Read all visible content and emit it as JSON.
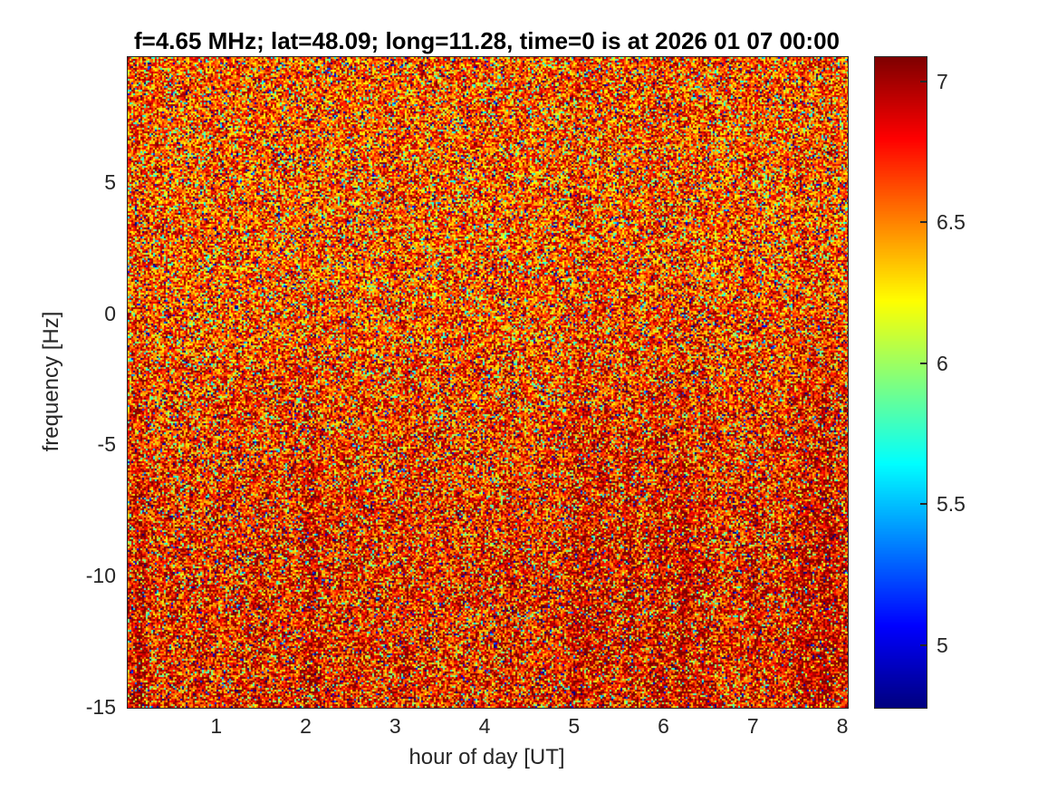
{
  "chart_data": {
    "type": "heatmap",
    "title": "f=4.65 MHz;  lat=48.09; long=11.28, time=0 is at 2026 01 07 00:00",
    "xlabel": "hour of day [UT]",
    "ylabel": "frequency [Hz]",
    "xlim": [
      0,
      8.05
    ],
    "ylim": [
      -15,
      9.8
    ],
    "xticks": [
      1,
      2,
      3,
      4,
      5,
      6,
      7,
      8
    ],
    "yticks": [
      5,
      0,
      -5,
      -10,
      -15
    ],
    "colormap": "jet",
    "clim": [
      4.78,
      7.09
    ],
    "colorbar_ticks": [
      5,
      5.5,
      6,
      6.5,
      7
    ],
    "grid": false,
    "legend": "colorbar-right",
    "texture": {
      "seed": 42,
      "base_level": 6.47,
      "bottom_gradient": 0.13,
      "right_edge_boost": 0.1,
      "right_edge_start": 6.9,
      "speckle_mix": {
        "blue_prob": 0.045,
        "blue_amp": [
          1.0,
          2.3
        ],
        "green_prob": 0.095,
        "green_amp": [
          0.35,
          0.9
        ],
        "red_prob": 0.32,
        "red_amp": [
          0.28,
          0.62
        ],
        "jitter": 0.55
      },
      "streaks": [
        {
          "x": 0.13,
          "a": 0.3,
          "w": 0.05
        },
        {
          "x": 1.48,
          "a": 0.12,
          "w": 0.04
        },
        {
          "x": 2.05,
          "a": 0.28,
          "w": 0.05
        },
        {
          "x": 2.5,
          "a": 0.1,
          "w": 0.04
        },
        {
          "x": 3.1,
          "a": 0.12,
          "w": 0.04
        },
        {
          "x": 4.25,
          "a": 0.12,
          "w": 0.05
        },
        {
          "x": 5.05,
          "a": 0.32,
          "w": 0.07
        },
        {
          "x": 5.3,
          "a": 0.25,
          "w": 0.05
        },
        {
          "x": 5.62,
          "a": 0.22,
          "w": 0.05
        },
        {
          "x": 5.95,
          "a": 0.28,
          "w": 0.06
        },
        {
          "x": 6.2,
          "a": 0.33,
          "w": 0.06
        },
        {
          "x": 6.45,
          "a": 0.22,
          "w": 0.05
        },
        {
          "x": 7.0,
          "a": 0.18,
          "w": 0.05
        },
        {
          "x": 7.55,
          "a": 0.22,
          "w": 0.06
        },
        {
          "x": 7.8,
          "a": 0.26,
          "w": 0.07
        }
      ]
    }
  }
}
